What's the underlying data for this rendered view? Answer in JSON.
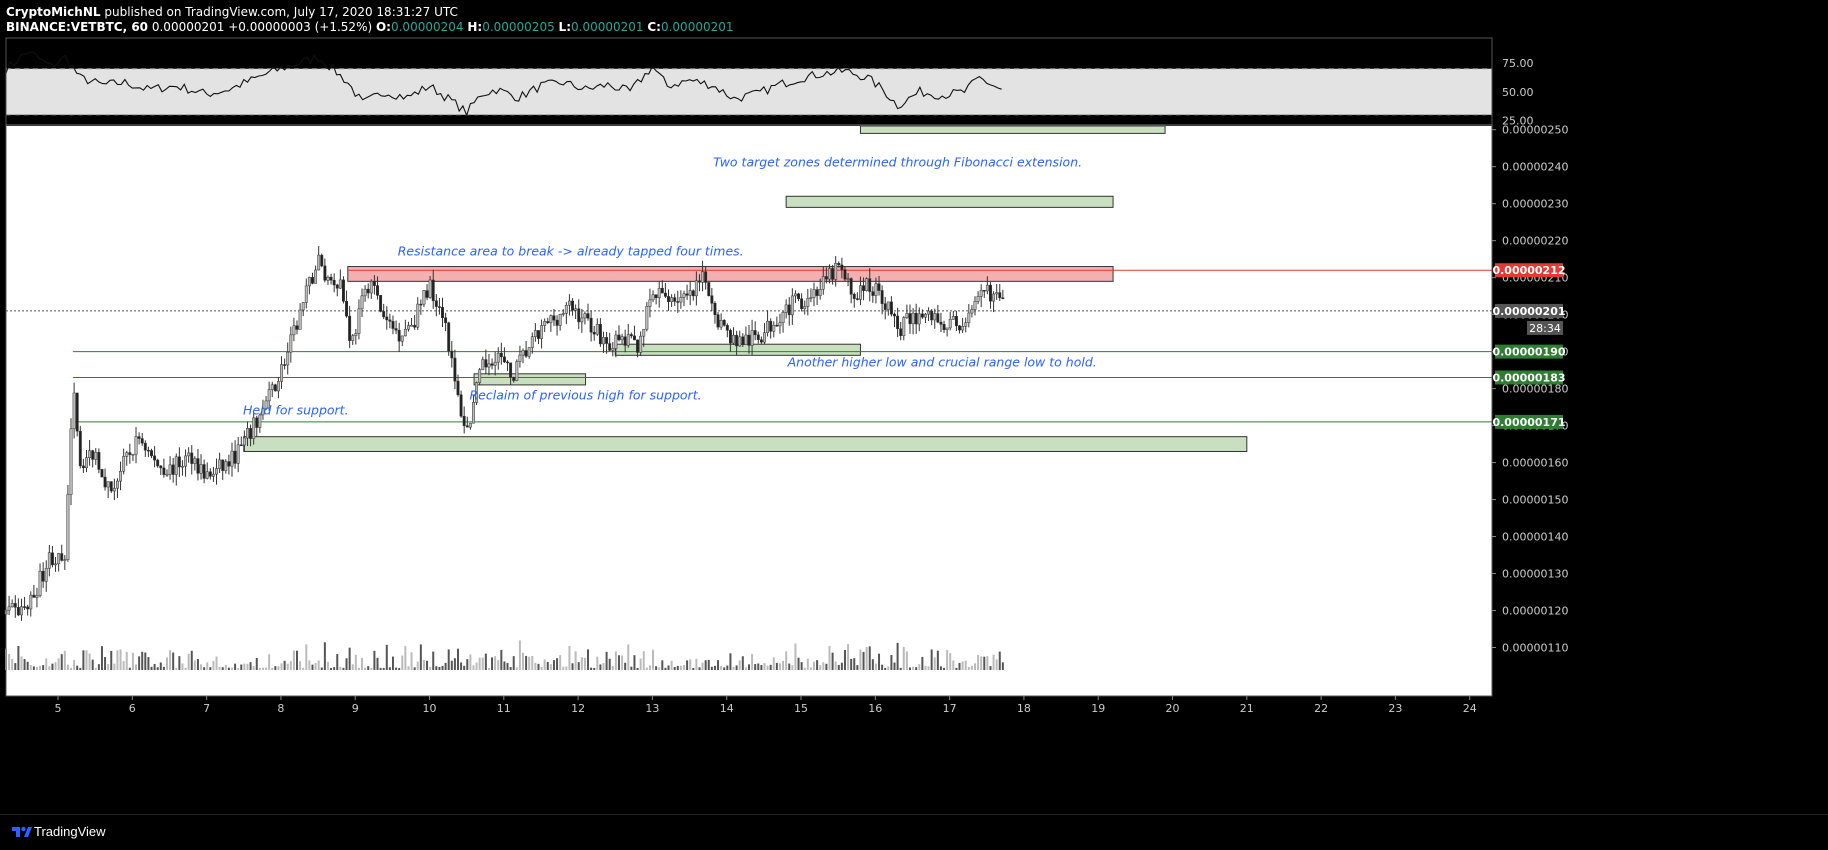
{
  "header": {
    "author": "CryptoMichNL",
    "published": "published on TradingView.com, July 17, 2020 18:31:27 UTC",
    "symbol": "BINANCE:VETBTC, 60",
    "last": "0.00000201",
    "change": "+0.00000003 (+1.52%)",
    "o_label": "O:",
    "o_value": "0.00000204",
    "h_label": "H:",
    "h_value": "0.00000205",
    "l_label": "L:",
    "l_value": "0.00000201",
    "c_label": "C:",
    "c_value": "0.00000201"
  },
  "footer": {
    "brand": "TradingView"
  },
  "colors": {
    "background": "#000000",
    "up_candle": "#ffffff",
    "down_candle": "#000000",
    "resistance": "#f4b0b0",
    "support_zone": "#c8e0c0",
    "support_line": "#2e7d32",
    "resistance_line": "#e53935",
    "annotation": "#2962ff"
  },
  "chart_data": {
    "type": "candlestick",
    "timeframe": "60",
    "x_ticks": [
      "5",
      "6",
      "7",
      "8",
      "9",
      "10",
      "11",
      "12",
      "13",
      "14",
      "15",
      "16",
      "17",
      "18",
      "19",
      "20",
      "21",
      "22",
      "23",
      "24"
    ],
    "x_range_days": [
      4.3,
      24.3
    ],
    "y_ticks": [
      "0.00000250",
      "0.00000240",
      "0.00000230",
      "0.00000220",
      "0.00000210",
      "0.00000200",
      "0.00000190",
      "0.00000180",
      "0.00000170",
      "0.00000160",
      "0.00000150",
      "0.00000140",
      "0.00000130",
      "0.00000120",
      "0.00000110"
    ],
    "y_range": [
      1.05e-06,
      2.51e-06
    ],
    "price_path": [
      [
        4.3,
        119
      ],
      [
        4.6,
        121
      ],
      [
        4.9,
        135
      ],
      [
        5.1,
        132
      ],
      [
        5.2,
        184
      ],
      [
        5.3,
        160
      ],
      [
        5.5,
        163
      ],
      [
        5.7,
        152
      ],
      [
        5.9,
        160
      ],
      [
        6.1,
        167
      ],
      [
        6.3,
        160
      ],
      [
        6.5,
        158
      ],
      [
        6.8,
        162
      ],
      [
        7.0,
        156
      ],
      [
        7.3,
        160
      ],
      [
        7.5,
        165
      ],
      [
        7.7,
        172
      ],
      [
        7.9,
        180
      ],
      [
        8.1,
        190
      ],
      [
        8.3,
        203
      ],
      [
        8.5,
        215
      ],
      [
        8.6,
        210
      ],
      [
        8.8,
        209
      ],
      [
        8.95,
        192
      ],
      [
        9.05,
        200
      ],
      [
        9.2,
        210
      ],
      [
        9.4,
        198
      ],
      [
        9.6,
        195
      ],
      [
        9.8,
        199
      ],
      [
        10.0,
        208
      ],
      [
        10.2,
        200
      ],
      [
        10.35,
        180
      ],
      [
        10.5,
        168
      ],
      [
        10.7,
        185
      ],
      [
        10.9,
        190
      ],
      [
        11.1,
        183
      ],
      [
        11.3,
        190
      ],
      [
        11.6,
        198
      ],
      [
        11.9,
        202
      ],
      [
        12.2,
        197
      ],
      [
        12.4,
        192
      ],
      [
        12.6,
        193
      ],
      [
        12.8,
        192
      ],
      [
        13.0,
        205
      ],
      [
        13.2,
        205
      ],
      [
        13.5,
        204
      ],
      [
        13.7,
        210
      ],
      [
        13.9,
        198
      ],
      [
        14.1,
        193
      ],
      [
        14.3,
        193
      ],
      [
        14.5,
        195
      ],
      [
        14.7,
        200
      ],
      [
        14.9,
        203
      ],
      [
        15.1,
        205
      ],
      [
        15.3,
        208
      ],
      [
        15.5,
        213
      ],
      [
        15.7,
        205
      ],
      [
        15.9,
        208
      ],
      [
        16.1,
        205
      ],
      [
        16.3,
        196
      ],
      [
        16.5,
        199
      ],
      [
        16.7,
        200
      ],
      [
        16.9,
        198
      ],
      [
        17.1,
        197
      ],
      [
        17.3,
        200
      ],
      [
        17.5,
        207
      ],
      [
        17.7,
        203
      ],
      [
        17.75,
        201
      ]
    ],
    "horizontal_levels": [
      {
        "label": "0.00000212",
        "price": 2.12e-06,
        "color": "red"
      },
      {
        "label": "0.00000190",
        "price": 1.9e-06,
        "color": "green"
      },
      {
        "label": "0.00000183",
        "price": 1.83e-06,
        "color": "green"
      },
      {
        "label": "0.00000171",
        "price": 1.71e-06,
        "color": "green"
      }
    ],
    "current_price": {
      "label": "0.00000201",
      "price": 2.01e-06,
      "countdown": "28:34"
    },
    "zones": [
      {
        "kind": "resistance",
        "x": [
          8.9,
          19.2
        ],
        "y": [
          2.09e-06,
          2.13e-06
        ]
      },
      {
        "kind": "target",
        "x": [
          14.8,
          19.2
        ],
        "y": [
          2.29e-06,
          2.32e-06
        ]
      },
      {
        "kind": "target",
        "x": [
          15.8,
          19.9
        ],
        "y": [
          2.49e-06,
          2.51e-06
        ]
      },
      {
        "kind": "support",
        "x": [
          12.5,
          15.8
        ],
        "y": [
          1.89e-06,
          1.92e-06
        ]
      },
      {
        "kind": "support",
        "x": [
          10.6,
          12.1
        ],
        "y": [
          1.81e-06,
          1.84e-06
        ]
      },
      {
        "kind": "support",
        "x": [
          7.5,
          21.0
        ],
        "y": [
          1.63e-06,
          1.67e-06
        ]
      }
    ],
    "annotations": [
      {
        "text": "Two target zones determined through Fibonacci extension.",
        "x": 16.3,
        "price": 2.4e-06
      },
      {
        "text": "Resistance area to break -> already tapped four times.",
        "x": 11.9,
        "price": 2.16e-06
      },
      {
        "text": "Another higher low and crucial range low to hold.",
        "x": 16.9,
        "price": 1.86e-06
      },
      {
        "text": "Reclaim of previous high for support.",
        "x": 12.1,
        "price": 1.77e-06
      },
      {
        "text": "Held for support.",
        "x": 8.2,
        "price": 1.73e-06
      }
    ],
    "rsi": {
      "y_ticks": [
        "75.00",
        "50.00",
        "25.00"
      ],
      "y_range": [
        22,
        95
      ],
      "band": [
        30,
        70
      ],
      "values": [
        [
          4.3,
          70
        ],
        [
          4.6,
          85
        ],
        [
          4.9,
          72
        ],
        [
          5.1,
          80
        ],
        [
          5.3,
          62
        ],
        [
          5.6,
          56
        ],
        [
          5.9,
          58
        ],
        [
          6.2,
          52
        ],
        [
          6.6,
          55
        ],
        [
          7.0,
          48
        ],
        [
          7.3,
          52
        ],
        [
          7.6,
          60
        ],
        [
          7.9,
          68
        ],
        [
          8.1,
          72
        ],
        [
          8.3,
          76
        ],
        [
          8.5,
          80
        ],
        [
          8.7,
          70
        ],
        [
          8.9,
          58
        ],
        [
          9.1,
          40
        ],
        [
          9.4,
          50
        ],
        [
          9.7,
          45
        ],
        [
          10.0,
          55
        ],
        [
          10.3,
          42
        ],
        [
          10.5,
          32
        ],
        [
          10.7,
          48
        ],
        [
          10.9,
          52
        ],
        [
          11.2,
          45
        ],
        [
          11.5,
          55
        ],
        [
          11.8,
          58
        ],
        [
          12.1,
          52
        ],
        [
          12.4,
          56
        ],
        [
          12.7,
          50
        ],
        [
          13.0,
          72
        ],
        [
          13.2,
          55
        ],
        [
          13.5,
          60
        ],
        [
          13.8,
          56
        ],
        [
          14.1,
          44
        ],
        [
          14.4,
          48
        ],
        [
          14.7,
          56
        ],
        [
          15.0,
          62
        ],
        [
          15.3,
          66
        ],
        [
          15.6,
          68
        ],
        [
          15.9,
          62
        ],
        [
          16.1,
          52
        ],
        [
          16.3,
          38
        ],
        [
          16.6,
          50
        ],
        [
          16.9,
          47
        ],
        [
          17.2,
          50
        ],
        [
          17.4,
          62
        ],
        [
          17.6,
          55
        ],
        [
          17.75,
          50
        ]
      ]
    },
    "volume": "per-candle volume bars along bottom of price pane"
  }
}
